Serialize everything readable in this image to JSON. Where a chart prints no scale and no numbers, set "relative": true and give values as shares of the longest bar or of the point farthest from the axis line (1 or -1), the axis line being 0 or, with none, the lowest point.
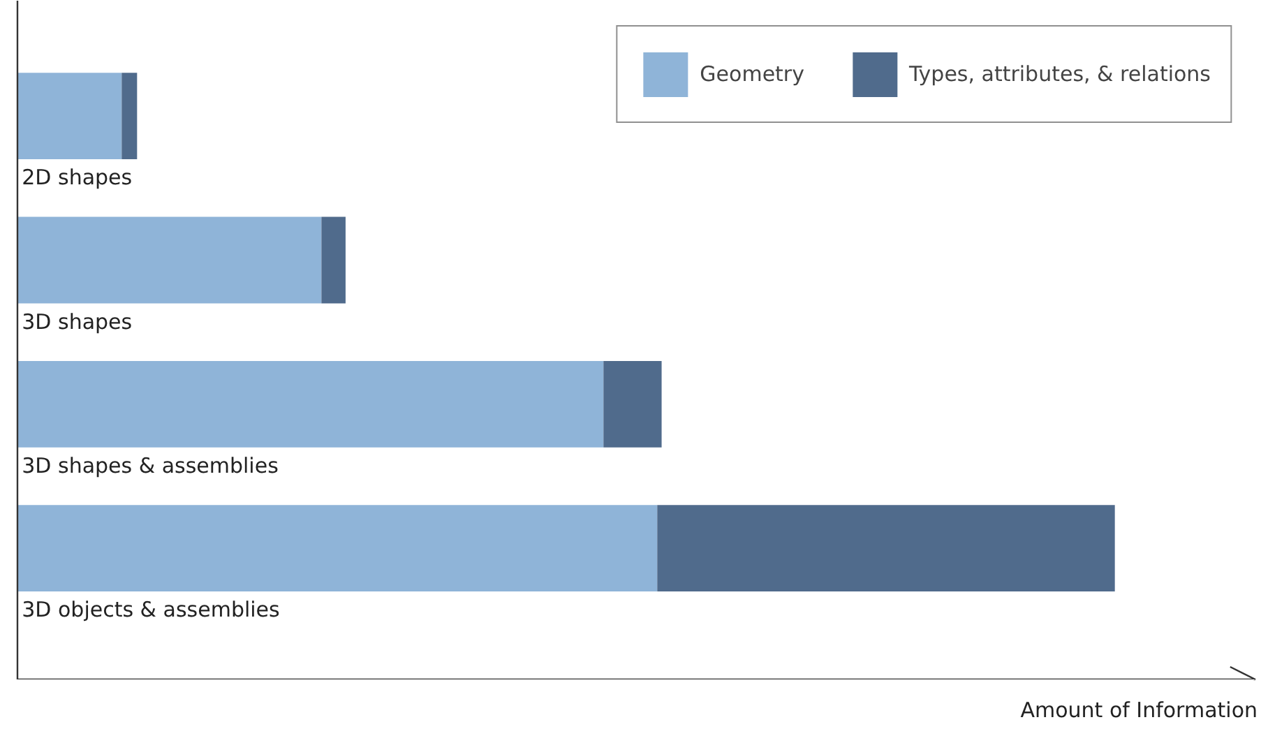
{
  "chart_data": {
    "type": "bar",
    "orientation": "horizontal",
    "stacked": true,
    "relative": true,
    "categories": [
      "2D shapes",
      "3D shapes",
      "3D shapes & assemblies",
      "3D objects & assemblies"
    ],
    "series": [
      {
        "name": "Geometry",
        "color": "#8fb4d8",
        "values": [
          0.095,
          0.277,
          0.534,
          0.583
        ]
      },
      {
        "name": "Types, attributes, & relations",
        "color": "#506b8c",
        "values": [
          0.014,
          0.022,
          0.053,
          0.417
        ]
      }
    ],
    "xlabel": "Amount of Information",
    "legend": "top right",
    "grid": false
  }
}
